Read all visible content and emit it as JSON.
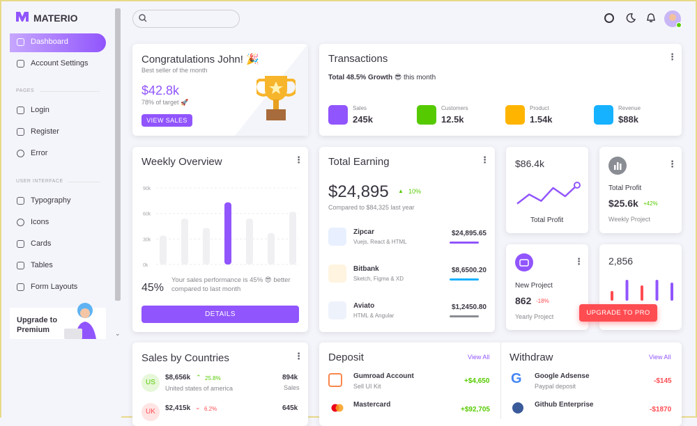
{
  "sidebar": {
    "brand": "MATERIO",
    "nav": [
      "Dashboard",
      "Account Settings"
    ],
    "pages_title": "PAGES",
    "pages": [
      "Login",
      "Register",
      "Error"
    ],
    "ui_title": "USER INTERFACE",
    "ui": [
      "Typography",
      "Icons",
      "Cards",
      "Tables",
      "Form Layouts"
    ],
    "upgrade": "Upgrade to Premium"
  },
  "congrats": {
    "title": "Congratulations John! 🎉",
    "subtitle": "Best seller of the month",
    "amount": "$42.8k",
    "target": "78% of target 🚀",
    "button": "VIEW SALES"
  },
  "transactions": {
    "title": "Transactions",
    "growth": "Total 48.5% Growth 😎",
    "growth_suffix": "this month",
    "stats": [
      {
        "label": "Sales",
        "value": "245k",
        "color": "#9155fd"
      },
      {
        "label": "Customers",
        "value": "12.5k",
        "color": "#56ca00"
      },
      {
        "label": "Product",
        "value": "1.54k",
        "color": "#ffb400"
      },
      {
        "label": "Revenue",
        "value": "$88k",
        "color": "#16b1ff"
      }
    ]
  },
  "weekly": {
    "title": "Weekly Overview",
    "ylim": [
      0,
      90000
    ],
    "yticks": [
      {
        "value": 0,
        "label": "0k"
      },
      {
        "value": 30000,
        "label": "30k"
      },
      {
        "value": 60000,
        "label": "60k"
      },
      {
        "value": 90000,
        "label": "90k"
      }
    ],
    "categories": [
      null,
      null,
      null,
      null,
      null,
      null,
      null
    ],
    "values": [
      34000,
      54000,
      43000,
      73000,
      54000,
      37000,
      62000
    ],
    "colors": [
      "#f0f0f3",
      "#f0f0f3",
      "#f0f0f3",
      "#9155fd",
      "#f0f0f3",
      "#f0f0f3",
      "#f0f0f3"
    ],
    "percent": "45%",
    "text": "Your sales performance is 45% 😎 better compared to last month",
    "button": "DETAILS"
  },
  "earning": {
    "title": "Total Earning",
    "amount": "$24,895",
    "change": "10%",
    "compare": "Compared to $84,325 last year",
    "items": [
      {
        "name": "Zipcar",
        "sub": "Vuejs, React & HTML",
        "amount": "$24,895.65",
        "color": "#9155fd"
      },
      {
        "name": "Bitbank",
        "sub": "Sketch, Figma & XD",
        "amount": "$8,6500.20",
        "color": "#16b1ff"
      },
      {
        "name": "Aviato",
        "sub": "HTML & Angular",
        "amount": "$1,2450.80",
        "color": "#8a8d93"
      }
    ]
  },
  "profit_line": {
    "amount": "$86.4k",
    "label": "Total Profit",
    "ylim": [
      0,
      60
    ],
    "values": [
      8,
      28,
      14,
      42,
      24,
      48
    ],
    "color": "#9155fd"
  },
  "total_profit": {
    "label": "Total Profit",
    "amount": "$25.6k",
    "change": "+42%",
    "period": "Weekly Project"
  },
  "new_project": {
    "label": "New Project",
    "amount": "862",
    "change": "-18%",
    "period": "Yearly Project"
  },
  "sessions": {
    "amount": "2,856",
    "ylim": [
      0,
      40
    ],
    "values": [
      14,
      30,
      22,
      30,
      26
    ],
    "colors": [
      "#ff4c51",
      "#9155fd",
      "#ff4c51",
      "#9155fd",
      "#9155fd"
    ]
  },
  "upgrade_button": "UPGRADE TO PRO",
  "countries": {
    "title": "Sales by Countries",
    "rows": [
      {
        "code": "US",
        "amount": "$8,656k",
        "change": "25.8%",
        "country": "United states of america",
        "sales": "894k",
        "sales_label": "Sales"
      },
      {
        "code": "UK",
        "amount": "$2,415k",
        "change": "6.2%",
        "sales": "645k"
      }
    ]
  },
  "deposit": {
    "title": "Deposit",
    "link": "View All",
    "rows": [
      {
        "name": "Gumroad Account",
        "sub": "Sell UI Kit",
        "amount": "+$4,650"
      },
      {
        "name": "Mastercard",
        "amount": "+$92,705"
      }
    ]
  },
  "withdraw": {
    "title": "Withdraw",
    "link": "View All",
    "rows": [
      {
        "name": "Google Adsense",
        "sub": "Paypal deposit",
        "amount": "-$145"
      },
      {
        "name": "Github Enterprise",
        "amount": "-$1870"
      }
    ]
  }
}
